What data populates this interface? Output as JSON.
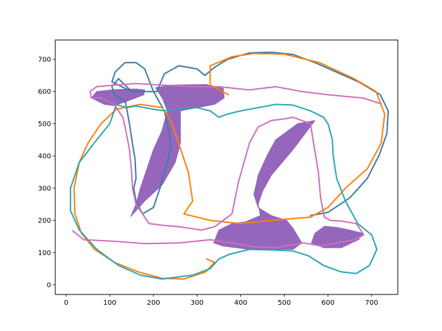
{
  "chart_data": {
    "type": "line",
    "title": "",
    "xlabel": "",
    "ylabel": "",
    "xlim": [
      -25,
      760
    ],
    "ylim": [
      -30,
      760
    ],
    "x_ticks": [
      0,
      100,
      200,
      300,
      400,
      500,
      600,
      700
    ],
    "y_ticks": [
      0,
      100,
      200,
      300,
      400,
      500,
      600,
      700
    ],
    "grid": false,
    "legend": "none",
    "series": [
      {
        "color": "#3f7ba6",
        "fill": false,
        "points": [
          [
            150,
            600
          ],
          [
            120,
            640
          ],
          [
            105,
            615
          ],
          [
            110,
            590
          ],
          [
            135,
            570
          ],
          [
            138,
            552
          ],
          [
            145,
            500
          ],
          [
            150,
            455
          ],
          [
            158,
            390
          ],
          [
            160,
            330
          ],
          [
            155,
            300
          ],
          [
            160,
            260
          ],
          [
            175,
            220
          ],
          [
            200,
            240
          ],
          [
            215,
            300
          ],
          [
            232,
            380
          ],
          [
            240,
            430
          ],
          [
            235,
            480
          ],
          [
            225,
            540
          ],
          [
            200,
            600
          ],
          [
            180,
            670
          ],
          [
            160,
            690
          ],
          [
            135,
            690
          ],
          [
            112,
            660
          ],
          [
            105,
            630
          ],
          [
            150,
            600
          ],
          [
            208,
            600
          ],
          [
            225,
            655
          ],
          [
            258,
            680
          ],
          [
            300,
            670
          ],
          [
            318,
            650
          ],
          [
            340,
            675
          ],
          [
            370,
            700
          ],
          [
            420,
            720
          ],
          [
            470,
            722
          ],
          [
            520,
            715
          ],
          [
            570,
            690
          ],
          [
            620,
            660
          ],
          [
            670,
            630
          ],
          [
            720,
            590
          ],
          [
            738,
            540
          ],
          [
            735,
            470
          ],
          [
            718,
            405
          ],
          [
            690,
            330
          ],
          [
            650,
            270
          ],
          [
            600,
            225
          ],
          [
            560,
            215
          ]
        ]
      },
      {
        "color": "#ff7f0e",
        "fill": false,
        "points": [
          [
            372,
            590
          ],
          [
            330,
            620
          ],
          [
            330,
            680
          ],
          [
            380,
            708
          ],
          [
            430,
            718
          ],
          [
            500,
            716
          ],
          [
            580,
            690
          ],
          [
            660,
            640
          ],
          [
            710,
            600
          ],
          [
            730,
            530
          ],
          [
            722,
            440
          ],
          [
            690,
            360
          ],
          [
            640,
            300
          ],
          [
            600,
            240
          ],
          [
            560,
            210
          ],
          [
            470,
            200
          ],
          [
            400,
            190
          ],
          [
            330,
            200
          ],
          [
            270,
            220
          ],
          [
            290,
            260
          ],
          [
            280,
            350
          ],
          [
            260,
            430
          ],
          [
            240,
            510
          ],
          [
            220,
            550
          ],
          [
            170,
            560
          ],
          [
            115,
            545
          ],
          [
            80,
            500
          ],
          [
            50,
            440
          ],
          [
            30,
            380
          ],
          [
            18,
            300
          ],
          [
            20,
            220
          ],
          [
            35,
            160
          ],
          [
            65,
            110
          ],
          [
            110,
            70
          ],
          [
            165,
            40
          ],
          [
            220,
            20
          ],
          [
            270,
            18
          ],
          [
            320,
            40
          ],
          [
            340,
            70
          ],
          [
            322,
            80
          ]
        ]
      },
      {
        "color": "#2ca5b5",
        "fill": false,
        "points": [
          [
            220,
            18
          ],
          [
            290,
            30
          ],
          [
            330,
            50
          ],
          [
            350,
            80
          ],
          [
            375,
            95
          ],
          [
            420,
            110
          ],
          [
            470,
            108
          ],
          [
            520,
            105
          ],
          [
            555,
            90
          ],
          [
            590,
            60
          ],
          [
            630,
            40
          ],
          [
            665,
            35
          ],
          [
            695,
            60
          ],
          [
            712,
            110
          ],
          [
            700,
            155
          ],
          [
            668,
            190
          ],
          [
            640,
            260
          ],
          [
            620,
            330
          ],
          [
            612,
            400
          ],
          [
            610,
            450
          ],
          [
            600,
            500
          ],
          [
            590,
            520
          ],
          [
            560,
            540
          ],
          [
            520,
            558
          ],
          [
            480,
            560
          ],
          [
            440,
            550
          ],
          [
            400,
            540
          ],
          [
            370,
            530
          ],
          [
            350,
            520
          ],
          [
            330,
            540
          ],
          [
            300,
            550
          ],
          [
            260,
            548
          ],
          [
            225,
            540
          ],
          [
            200,
            545
          ],
          [
            160,
            555
          ],
          [
            138,
            550
          ],
          [
            115,
            560
          ],
          [
            100,
            500
          ],
          [
            70,
            450
          ],
          [
            30,
            380
          ],
          [
            10,
            300
          ],
          [
            10,
            230
          ],
          [
            30,
            170
          ],
          [
            70,
            110
          ],
          [
            120,
            60
          ],
          [
            170,
            30
          ],
          [
            220,
            18
          ]
        ]
      },
      {
        "color": "#d16fb7",
        "fill": false,
        "points": [
          [
            15,
            168
          ],
          [
            40,
            140
          ],
          [
            110,
            135
          ],
          [
            180,
            128
          ],
          [
            260,
            130
          ],
          [
            330,
            140
          ],
          [
            380,
            130
          ],
          [
            430,
            118
          ],
          [
            480,
            115
          ],
          [
            545,
            130
          ],
          [
            585,
            120
          ],
          [
            620,
            130
          ],
          [
            660,
            140
          ],
          [
            682,
            155
          ],
          [
            665,
            190
          ],
          [
            630,
            198
          ],
          [
            605,
            200
          ],
          [
            592,
            210
          ],
          [
            583,
            270
          ],
          [
            578,
            350
          ],
          [
            568,
            430
          ],
          [
            560,
            500
          ],
          [
            520,
            520
          ],
          [
            500,
            515
          ],
          [
            470,
            510
          ],
          [
            440,
            490
          ],
          [
            420,
            440
          ],
          [
            395,
            320
          ],
          [
            380,
            220
          ],
          [
            360,
            200
          ],
          [
            340,
            180
          ],
          [
            310,
            170
          ],
          [
            260,
            180
          ],
          [
            220,
            185
          ],
          [
            190,
            190
          ],
          [
            175,
            220
          ],
          [
            160,
            250
          ],
          [
            152,
            300
          ],
          [
            150,
            350
          ],
          [
            145,
            420
          ],
          [
            138,
            470
          ],
          [
            130,
            520
          ],
          [
            110,
            560
          ],
          [
            80,
            580
          ],
          [
            58,
            580
          ],
          [
            55,
            600
          ],
          [
            70,
            615
          ],
          [
            110,
            620
          ],
          [
            160,
            625
          ],
          [
            220,
            620
          ],
          [
            290,
            615
          ],
          [
            350,
            615
          ],
          [
            420,
            605
          ],
          [
            480,
            615
          ],
          [
            540,
            600
          ],
          [
            600,
            590
          ],
          [
            680,
            580
          ],
          [
            722,
            562
          ]
        ]
      },
      {
        "color": "#9467bd",
        "fill": true,
        "points": [
          [
            148,
            212
          ],
          [
            180,
            260
          ],
          [
            220,
            310
          ],
          [
            250,
            380
          ],
          [
            262,
            440
          ],
          [
            262,
            500
          ],
          [
            262,
            540
          ],
          [
            300,
            550
          ],
          [
            340,
            560
          ],
          [
            362,
            580
          ],
          [
            360,
            610
          ],
          [
            320,
            622
          ],
          [
            240,
            620
          ],
          [
            205,
            612
          ],
          [
            220,
            580
          ],
          [
            232,
            540
          ],
          [
            220,
            480
          ],
          [
            200,
            420
          ],
          [
            185,
            360
          ],
          [
            170,
            300
          ],
          [
            160,
            250
          ],
          [
            148,
            212
          ]
        ]
      },
      {
        "color": "#9467bd",
        "fill": true,
        "points": [
          [
            338,
            130
          ],
          [
            360,
            120
          ],
          [
            420,
            110
          ],
          [
            470,
            110
          ],
          [
            520,
            110
          ],
          [
            540,
            130
          ],
          [
            520,
            175
          ],
          [
            505,
            200
          ],
          [
            470,
            215
          ],
          [
            440,
            240
          ],
          [
            430,
            280
          ],
          [
            440,
            340
          ],
          [
            460,
            400
          ],
          [
            480,
            450
          ],
          [
            530,
            500
          ],
          [
            570,
            510
          ],
          [
            548,
            470
          ],
          [
            520,
            420
          ],
          [
            495,
            380
          ],
          [
            470,
            340
          ],
          [
            450,
            290
          ],
          [
            440,
            250
          ],
          [
            445,
            215
          ],
          [
            410,
            195
          ],
          [
            380,
            190
          ],
          [
            350,
            170
          ],
          [
            338,
            130
          ]
        ]
      },
      {
        "color": "#9467bd",
        "fill": true,
        "points": [
          [
            562,
            130
          ],
          [
            590,
            115
          ],
          [
            630,
            115
          ],
          [
            670,
            140
          ],
          [
            680,
            160
          ],
          [
            650,
            170
          ],
          [
            620,
            178
          ],
          [
            592,
            182
          ],
          [
            570,
            160
          ],
          [
            562,
            130
          ]
        ]
      },
      {
        "color": "#9467bd",
        "fill": true,
        "points": [
          [
            58,
            580
          ],
          [
            70,
            600
          ],
          [
            110,
            606
          ],
          [
            160,
            608
          ],
          [
            180,
            605
          ],
          [
            178,
            590
          ],
          [
            140,
            570
          ],
          [
            110,
            556
          ],
          [
            88,
            560
          ],
          [
            58,
            580
          ]
        ]
      }
    ]
  }
}
